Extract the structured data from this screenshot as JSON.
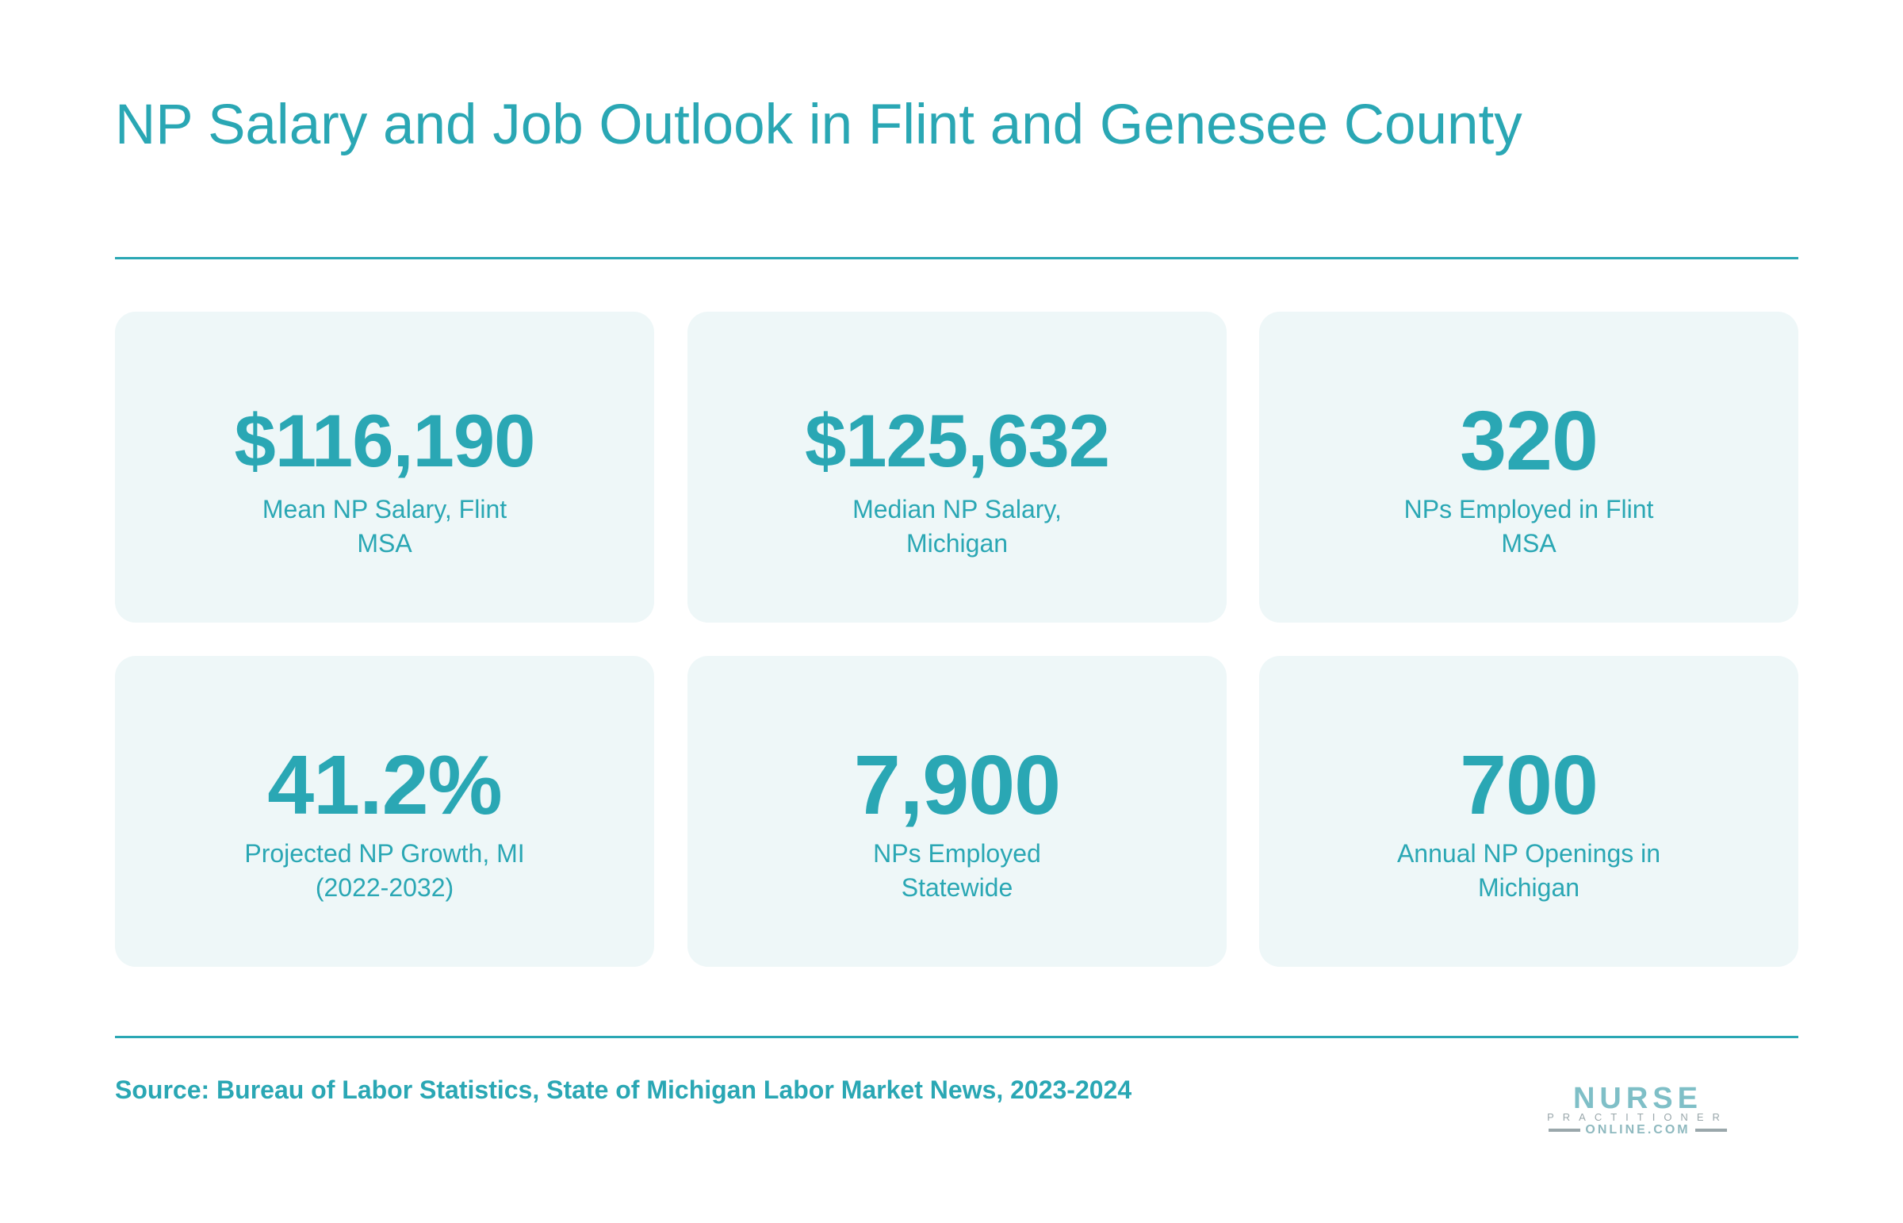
{
  "title": "NP Salary and Job Outlook in Flint and Genesee County",
  "cards": [
    {
      "value": "$116,190",
      "label": "Mean NP Salary, Flint MSA"
    },
    {
      "value": "$125,632",
      "label": "Median NP Salary, Michigan"
    },
    {
      "value": "320",
      "label": "NPs Employed in Flint MSA"
    },
    {
      "value": "41.2%",
      "label": "Projected NP Growth, MI (2022-2032)"
    },
    {
      "value": "7,900",
      "label": "NPs Employed Statewide"
    },
    {
      "value": "700",
      "label": "Annual NP Openings in Michigan"
    }
  ],
  "source": "Source: Bureau of Labor Statistics, State of Michigan Labor Market News, 2023-2024",
  "logo": {
    "line1": "NURSE",
    "line2": "PRACTITIONER",
    "line3": "ONLINE.COM"
  },
  "colors": {
    "accent": "#2aa7b4",
    "card_background": "#eef7f8"
  }
}
